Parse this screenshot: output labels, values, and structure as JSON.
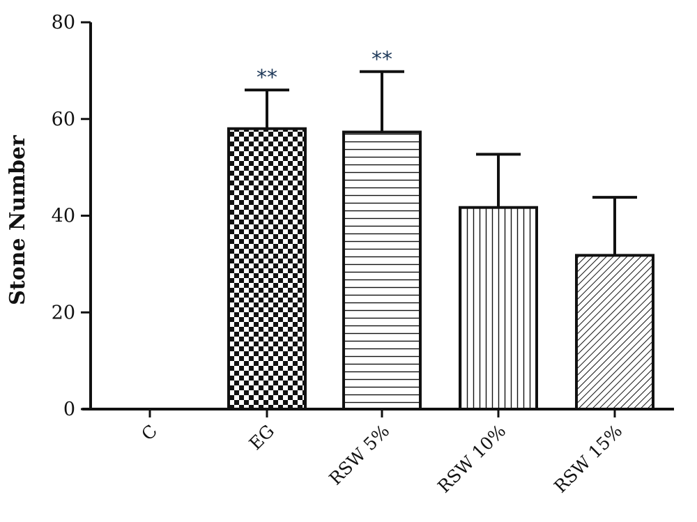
{
  "chart_data": {
    "type": "bar",
    "title": "",
    "xlabel": "",
    "ylabel": "Stone Number",
    "ylim": [
      0,
      80
    ],
    "yticks": [
      "0",
      "20",
      "40",
      "60",
      "80"
    ],
    "categories": [
      "C",
      "EG",
      "RSW 5%",
      "RSW 10%",
      "RSW 15%"
    ],
    "values": [
      0,
      58,
      57.3,
      41.7,
      31.8
    ],
    "error_plus": [
      0,
      8,
      12.5,
      11,
      12
    ],
    "patterns": [
      "none",
      "checker",
      "horizontal-lines",
      "vertical-lines",
      "diagonal-lines"
    ],
    "annotations": [
      "",
      "**",
      "**",
      "",
      ""
    ],
    "grid": false,
    "legend": "none",
    "colors": {
      "bar_stroke": "#111111",
      "bar_fill": "#ffffff",
      "annotation": "#1f3a5a"
    }
  }
}
